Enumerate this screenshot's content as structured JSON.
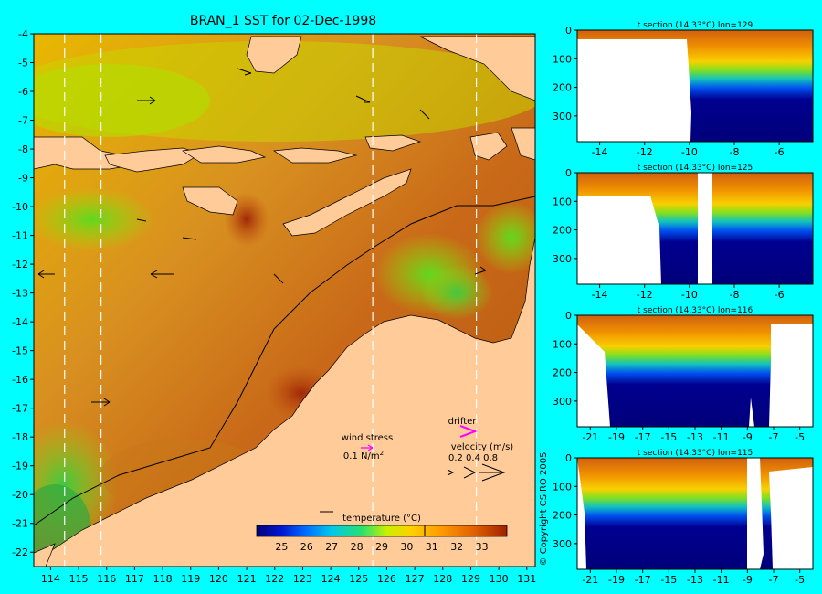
{
  "title": "BRAN_1 SST for 02-Dec-1998",
  "map": {
    "lat_ticks": [
      "-4",
      "-5",
      "-6",
      "-7",
      "-8",
      "-9",
      "-10",
      "-11",
      "-12",
      "-13",
      "-14",
      "-15",
      "-16",
      "-17",
      "-18",
      "-19",
      "-20",
      "-21",
      "-22"
    ],
    "lon_ticks": [
      "114",
      "115",
      "116",
      "117",
      "118",
      "119",
      "120",
      "121",
      "122",
      "123",
      "124",
      "125",
      "126",
      "127",
      "128",
      "129",
      "130",
      "131"
    ],
    "section_lons": [
      114.5,
      115.8,
      125.5,
      129.2
    ]
  },
  "legend": {
    "wind_label": "wind stress",
    "wind_value": "0.1 N/m",
    "wind_unit_sup": "2",
    "drifter_label": "drifter",
    "velocity_label": "velocity (m/s)",
    "velocity_values": "0.2 0.4 0.8"
  },
  "colorbar": {
    "label": "temperature (°C)",
    "ticks": [
      "25",
      "26",
      "27",
      "28",
      "29",
      "30",
      "31",
      "32",
      "33"
    ],
    "range": [
      24,
      34
    ],
    "colors": [
      "#00007a",
      "#0018d0",
      "#0070ff",
      "#00c8e8",
      "#28e070",
      "#c8f000",
      "#ffd000",
      "#ff9800",
      "#e06000",
      "#a02000"
    ]
  },
  "copyright": "© Copyright CSIRO 2005",
  "sections": [
    {
      "title": "t section (14.33°C) lon=129",
      "x_ticks": [
        "-14",
        "-12",
        "-10",
        "-8",
        "-6"
      ],
      "y_ticks": [
        "0",
        "100",
        "200",
        "300"
      ],
      "x_range": [
        -15,
        -4.5
      ],
      "y_range": [
        0,
        390
      ]
    },
    {
      "title": "t section (14.33°C) lon=125",
      "x_ticks": [
        "-14",
        "-12",
        "-10",
        "-8",
        "-6"
      ],
      "y_ticks": [
        "0",
        "100",
        "200",
        "300"
      ],
      "x_range": [
        -15,
        -4.5
      ],
      "y_range": [
        0,
        390
      ]
    },
    {
      "title": "t section (14.33°C) lon=116",
      "x_ticks": [
        "-21",
        "-19",
        "-17",
        "-15",
        "-13",
        "-11",
        "-9",
        "-7",
        "-5"
      ],
      "y_ticks": [
        "0",
        "100",
        "200",
        "300"
      ],
      "x_range": [
        -22,
        -4
      ],
      "y_range": [
        0,
        390
      ]
    },
    {
      "title": "t section (14.33°C) lon=115",
      "x_ticks": [
        "-21",
        "-19",
        "-17",
        "-15",
        "-13",
        "-11",
        "-9",
        "-7",
        "-5"
      ],
      "y_ticks": [
        "0",
        "100",
        "200",
        "300"
      ],
      "x_range": [
        -22,
        -4
      ],
      "y_range": [
        0,
        390
      ]
    }
  ]
}
